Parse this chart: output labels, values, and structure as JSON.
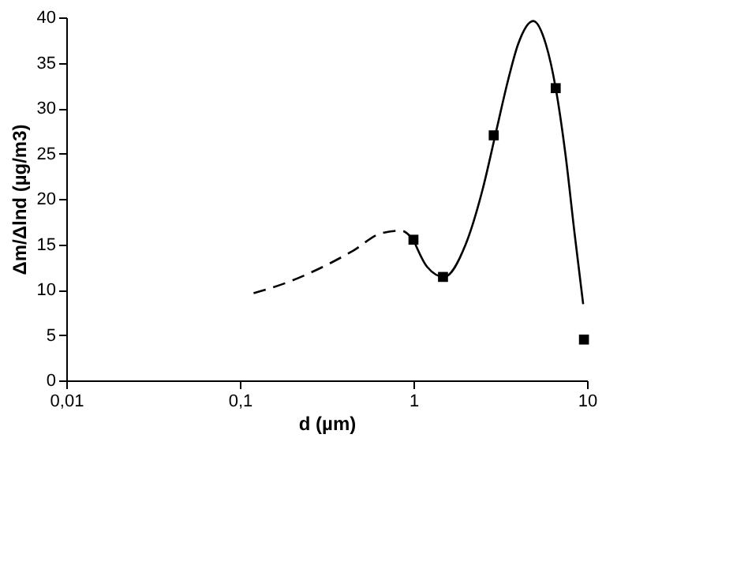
{
  "chart_data": {
    "type": "line",
    "xlabel": "d (µm)",
    "ylabel": "Δm/Δlnd (µg/m3)",
    "log": "x",
    "grid": false,
    "xlim": [
      0.01,
      10
    ],
    "xticks": [
      {
        "value": 0.01,
        "label": "0,01"
      },
      {
        "value": 0.1,
        "label": "0,1"
      },
      1,
      10
    ],
    "ylim": [
      0,
      40
    ],
    "yticks": [
      0,
      5,
      10,
      15,
      20,
      25,
      30,
      35,
      40
    ],
    "series": [
      {
        "line_style": "dashed",
        "marker": "none",
        "color": "#000000",
        "x": [
          0.12,
          0.2,
          0.3,
          0.45,
          0.65,
          0.85,
          1
        ],
        "values": [
          9.6,
          11,
          12.5,
          14.3,
          16.2,
          16.5,
          15.5
        ]
      },
      {
        "line_style": "solid",
        "marker": "none",
        "color": "#000000",
        "x": [
          1,
          1.2,
          1.5,
          2,
          2.5,
          3,
          3.5,
          4,
          4.9,
          5.8,
          6.6,
          7.5,
          8.5,
          9.5
        ],
        "values": [
          15.5,
          12.5,
          11.4,
          15,
          21,
          27.5,
          33,
          37,
          39.6,
          37,
          32.2,
          25,
          16,
          8.4
        ]
      },
      {
        "type": "scatter",
        "marker": "square",
        "color": "#000000",
        "x": [
          1,
          1.48,
          2.9,
          6.6,
          9.6
        ],
        "values": [
          15.5,
          11.4,
          27,
          32.2,
          4.5
        ]
      }
    ]
  }
}
